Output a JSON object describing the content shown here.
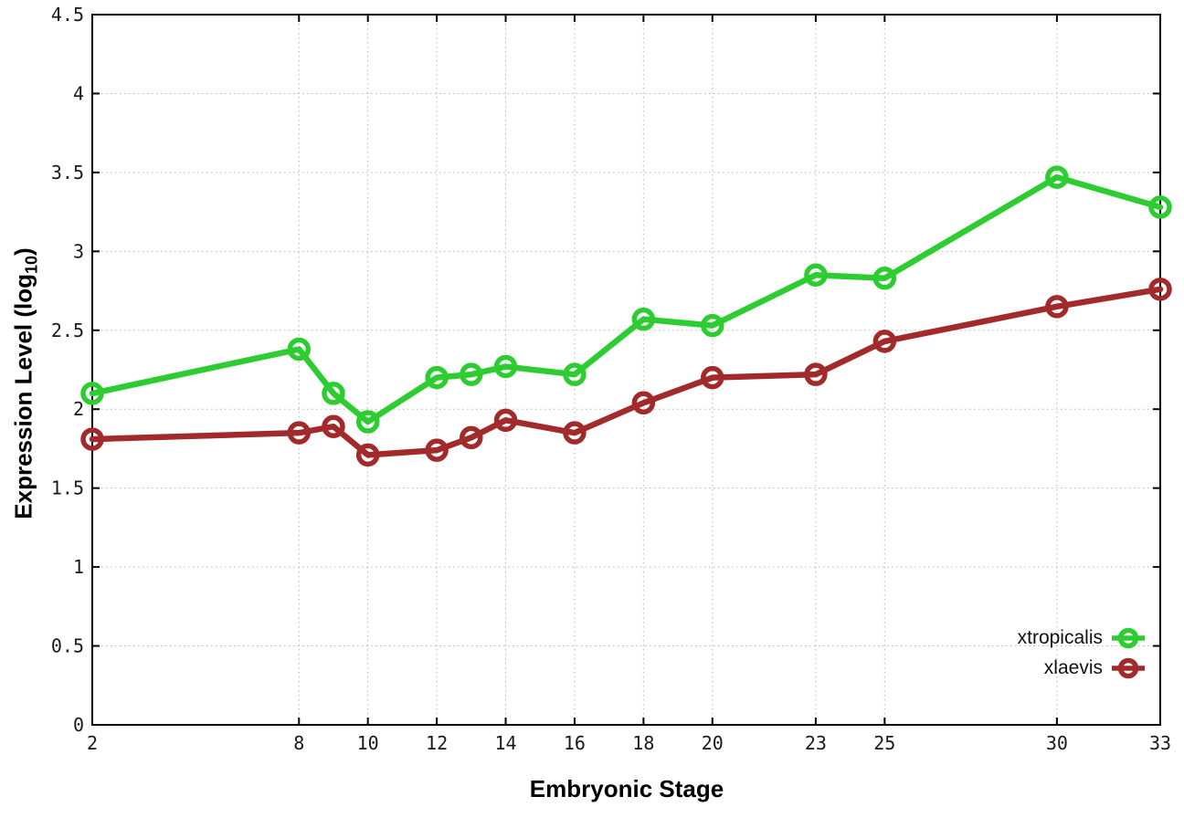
{
  "chart_data": {
    "type": "line",
    "title": "",
    "xlabel": "Embryonic Stage",
    "ylabel": "Expression Level (log10)",
    "ylabel_parts": {
      "prefix": "Expression Level (log",
      "sub": "10",
      "suffix": ")"
    },
    "xlim": [
      2,
      33
    ],
    "ylim": [
      0,
      4.5
    ],
    "xtick_values": [
      2,
      8,
      10,
      12,
      14,
      16,
      18,
      20,
      23,
      25,
      30,
      33
    ],
    "xtick_labels": [
      "2",
      "8",
      "10",
      "12",
      "14",
      "16",
      "18",
      "20",
      "23",
      "25",
      "30",
      "33"
    ],
    "ytick_values": [
      0,
      0.5,
      1,
      1.5,
      2,
      2.5,
      3,
      3.5,
      4,
      4.5
    ],
    "ytick_labels": [
      "0",
      "0.5",
      "1",
      "1.5",
      "2",
      "2.5",
      "3",
      "3.5",
      "4",
      "4.5"
    ],
    "grid": true,
    "legend_position": "bottom-right",
    "x": [
      2,
      8,
      9,
      10,
      12,
      13,
      14,
      16,
      18,
      20,
      23,
      25,
      30,
      33
    ],
    "series": [
      {
        "name": "xtropicalis",
        "color": "#2dcd32",
        "values": [
          2.1,
          2.38,
          2.1,
          1.92,
          2.2,
          2.22,
          2.27,
          2.22,
          2.57,
          2.53,
          2.85,
          2.83,
          3.47,
          3.28
        ]
      },
      {
        "name": "xlaevis",
        "color": "#a22a2a",
        "values": [
          1.81,
          1.85,
          1.89,
          1.71,
          1.74,
          1.82,
          1.93,
          1.85,
          2.04,
          2.2,
          2.22,
          2.43,
          2.65,
          2.76
        ]
      }
    ],
    "colors": {
      "grid": "#b5b5b5",
      "axis": "#000000",
      "tick_text": "#1a1a1a"
    }
  }
}
